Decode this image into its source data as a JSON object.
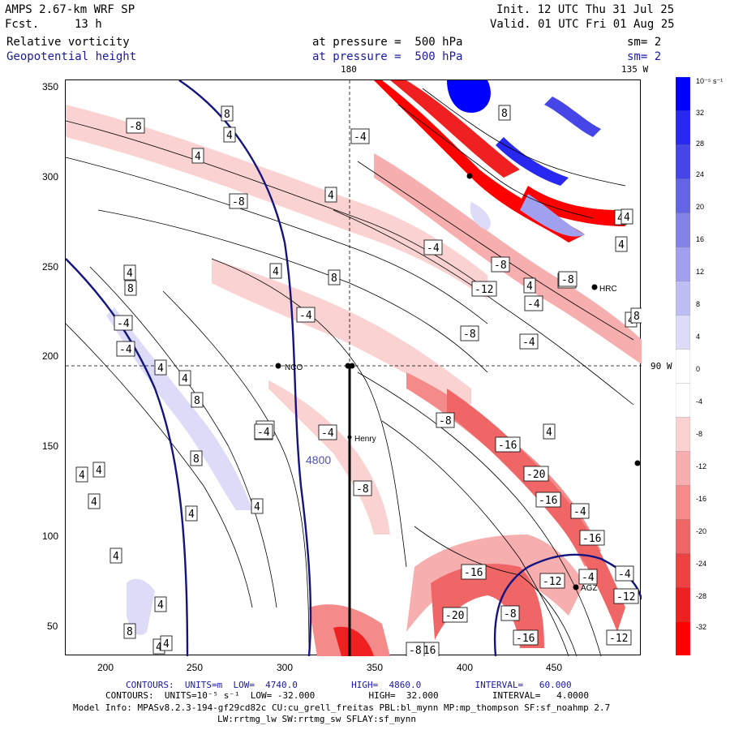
{
  "header": {
    "model": "AMPS 2.67-km WRF SP",
    "init": "Init. 12 UTC Thu 31 Jul 25",
    "fcst_label": "Fcst.",
    "fcst_value": "13 h",
    "valid": "Valid. 01 UTC Fri 01 Aug 25",
    "field1": "Relative vorticity",
    "field1_level": "at pressure =  500 hPa",
    "field1_sm": "sm= 2",
    "field2": "Geopotential height",
    "field2_level": "at pressure =  500 hPa",
    "field2_sm": "sm= 2"
  },
  "map": {
    "lon_top_180": "180",
    "lon_top_135w": "135 W",
    "lat_right_90w": "90 W",
    "x_ticks": [
      "200",
      "250",
      "300",
      "350",
      "400",
      "450"
    ],
    "y_ticks": [
      "350",
      "300",
      "250",
      "200",
      "150",
      "100",
      "50"
    ],
    "stations": [
      "NCO",
      "Henry",
      "HRC",
      "AGZ"
    ],
    "height_label": "4800",
    "vort_labels": [
      "8",
      "-8",
      "4",
      "-4",
      "4",
      "-8",
      "4",
      "-4",
      "-4",
      "4",
      "4",
      "8",
      "8",
      "4",
      "-4",
      "4",
      "8",
      "-4",
      "-4",
      "-8",
      "-16",
      "-20",
      "-16",
      "-4",
      "-16",
      "-12",
      "-20",
      "-8",
      "-16",
      "-16",
      "-12",
      "-16",
      "-8",
      "-8",
      "-12",
      "-4",
      "4",
      "4",
      "4",
      "4",
      "4",
      "4",
      "4",
      "8",
      "8",
      "4",
      "4",
      "-4",
      "-4",
      "-4",
      "-8",
      "-4",
      "4",
      "-4",
      "-12",
      "-8",
      "-4",
      "4",
      "4",
      "4",
      "4",
      "4",
      "8",
      "-8",
      "8",
      "-4"
    ]
  },
  "colorbar": {
    "unit": "10⁻⁵ s⁻¹",
    "labels": [
      "32",
      "28",
      "24",
      "20",
      "16",
      "12",
      "8",
      "4",
      "0",
      "-4",
      "-8",
      "-12",
      "-16",
      "-20",
      "-24",
      "-28",
      "-32"
    ],
    "colors": [
      "#0000ff",
      "#2828f0",
      "#4646e8",
      "#6464e6",
      "#8282e8",
      "#a0a0ee",
      "#bebef4",
      "#dcdcf8",
      "#ffffff",
      "#ffffff",
      "#fbd2d2",
      "#f7aeae",
      "#f48a8a",
      "#f06666",
      "#ee4242",
      "#ee2020",
      "#ff0000"
    ]
  },
  "footer": {
    "line1": "CONTOURS:  UNITS=m  LOW=  4740.0          HIGH=  4860.0          INTERVAL=   60.000",
    "line2": "CONTOURS:  UNITS=10⁻⁵ s⁻¹  LOW= -32.000          HIGH=  32.000          INTERVAL=   4.0000",
    "line3": "Model Info: MPASv8.2.3-194-gf29cd82c CU:cu_grell_freitas PBL:bl_mynn MP:mp_thompson SF:sf_noahmp 2.7",
    "line4": "LW:rrtmg_lw SW:rrtmg_sw SFLAY:sf_mynn"
  }
}
